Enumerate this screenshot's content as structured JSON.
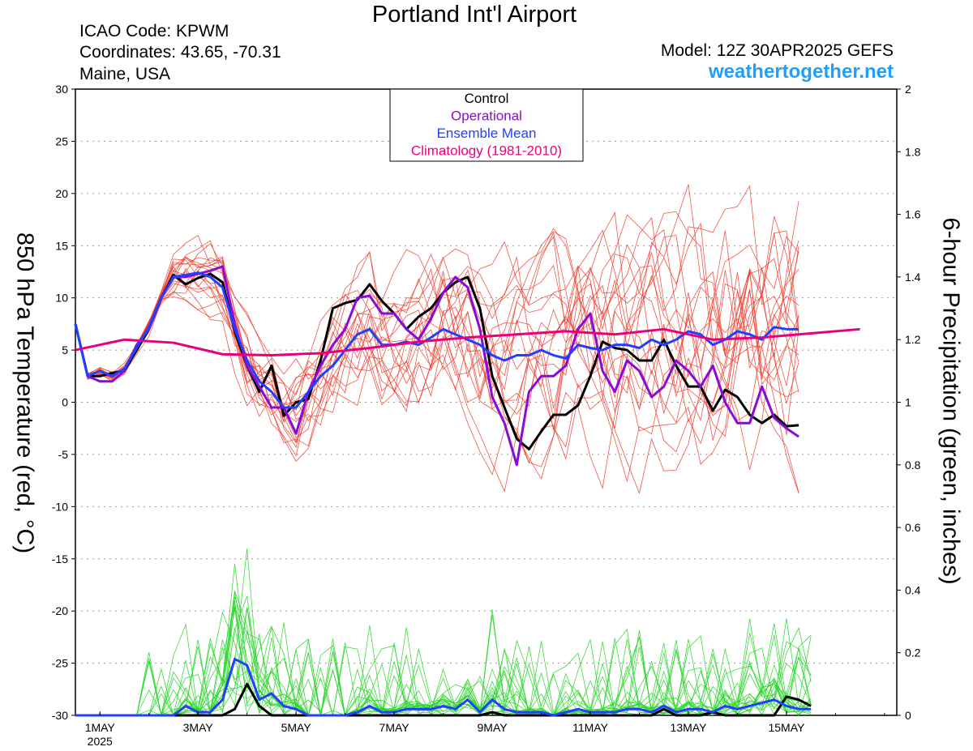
{
  "header": {
    "title": "Portland Int'l Airport",
    "icao": "ICAO Code: KPWM",
    "coords": "Coordinates: 43.65, -70.31",
    "region": "Maine, USA",
    "model": "Model: 12Z 30APR2025 GEFS",
    "brand": "weathertogether.net"
  },
  "chart_data": {
    "type": "line",
    "ylabel": "850 hPa Temperature (red, °C)",
    "y2label": "6-hour Precipitation (green, inches)",
    "ylim": [
      -30,
      30
    ],
    "y2lim": [
      0,
      2
    ],
    "yticks": [
      "30",
      "25",
      "20",
      "15",
      "10",
      "5",
      "0",
      "-5",
      "-10",
      "-15",
      "-20",
      "-25",
      "-30"
    ],
    "y2ticks": [
      "2",
      "1.8",
      "1.6",
      "1.4",
      "1.2",
      "1",
      "0.8",
      "0.6",
      "0.4",
      "0.2",
      "0"
    ],
    "xlim": [
      0,
      16.75
    ],
    "x_units": "days since 00Z 1MAY2025",
    "xticks": [
      {
        "x": 0.5,
        "label": "1MAY",
        "sub": "2025"
      },
      {
        "x": 2.5,
        "label": "3MAY"
      },
      {
        "x": 4.5,
        "label": "5MAY"
      },
      {
        "x": 6.5,
        "label": "7MAY"
      },
      {
        "x": 8.5,
        "label": "9MAY"
      },
      {
        "x": 10.5,
        "label": "11MAY"
      },
      {
        "x": 12.5,
        "label": "13MAY"
      },
      {
        "x": 14.5,
        "label": "15MAY"
      }
    ],
    "legend": {
      "placement": "top-center",
      "entries": [
        {
          "label": "Control",
          "color": "#000000"
        },
        {
          "label": "Operational",
          "color": "#8a0ad8"
        },
        {
          "label": "Ensemble Mean",
          "color": "#2040ff"
        },
        {
          "label": "Climatology (1981-2010)",
          "color": "#e8007a"
        }
      ]
    },
    "colors": {
      "control": "#000000",
      "operational": "#8a0ad8",
      "mean": "#2040ff",
      "climatology": "#e8007a",
      "members_temp": "#f03a2a",
      "members_precip": "#2ad62a"
    },
    "series": [
      {
        "name": "Control",
        "kind": "temperature",
        "x_start": 0,
        "x_step": 0.25,
        "values": [
          7.5,
          2.5,
          2.5,
          2.8,
          3.0,
          5.0,
          7.0,
          10.0,
          12.2,
          11.3,
          11.9,
          12.3,
          11.5,
          6.8,
          3.5,
          1.0,
          3.5,
          -1.3,
          0.0,
          0.3,
          4.0,
          9.0,
          9.5,
          9.8,
          11.3,
          9.7,
          8.5,
          7.0,
          8.2,
          9.0,
          10.5,
          11.5,
          12.0,
          9.0,
          2.5,
          -0.5,
          -3.5,
          -4.5,
          -2.8,
          -1.2,
          -1.2,
          -0.3,
          2.5,
          5.8,
          5.2,
          5.0,
          4.0,
          4.0,
          6.0,
          3.5,
          1.5,
          1.5,
          -0.8,
          1.2,
          0.5,
          -1.2,
          -2.0,
          -1.2,
          -2.3,
          -2.2
        ]
      },
      {
        "name": "Operational",
        "kind": "temperature",
        "x_start": 0,
        "x_step": 0.25,
        "values": [
          7.5,
          2.5,
          2.0,
          2.0,
          3.0,
          5.5,
          7.0,
          10.0,
          12.0,
          12.0,
          12.3,
          12.6,
          13.0,
          7.5,
          3.5,
          1.5,
          -0.5,
          -0.5,
          -3.0,
          1.0,
          3.5,
          5.5,
          7.0,
          10.0,
          10.2,
          8.5,
          8.5,
          7.0,
          6.0,
          8.0,
          10.5,
          12.0,
          11.0,
          7.0,
          0.5,
          -2.0,
          -6.0,
          1.0,
          2.5,
          2.5,
          3.5,
          7.0,
          8.5,
          3.0,
          1.0,
          4.0,
          3.0,
          0.5,
          1.5,
          4.0,
          3.0,
          1.5,
          3.5,
          0.0,
          -2.0,
          -2.0,
          1.5,
          -1.5,
          -2.5,
          -3.3
        ]
      },
      {
        "name": "Ensemble Mean",
        "kind": "temperature",
        "x_start": 0,
        "x_step": 0.25,
        "values": [
          7.5,
          2.5,
          3.0,
          2.5,
          3.2,
          5.2,
          7.2,
          10.0,
          12.0,
          12.2,
          12.4,
          12.0,
          11.0,
          7.0,
          4.0,
          2.0,
          1.0,
          -0.5,
          -0.5,
          1.0,
          2.5,
          3.5,
          5.0,
          6.5,
          7.0,
          5.5,
          5.5,
          5.8,
          5.5,
          6.2,
          7.0,
          6.5,
          6.0,
          5.5,
          4.5,
          4.0,
          4.5,
          4.5,
          5.0,
          4.5,
          4.2,
          5.5,
          5.2,
          5.0,
          5.5,
          5.5,
          5.2,
          6.0,
          5.5,
          6.0,
          6.8,
          6.5,
          5.5,
          6.0,
          6.8,
          6.5,
          6.0,
          7.2,
          7.0,
          7.0
        ]
      },
      {
        "name": "Climatology (1981-2010)",
        "kind": "temperature",
        "x_start": 0,
        "x_step": 1,
        "values": [
          5.0,
          6.0,
          5.7,
          4.6,
          4.5,
          4.7,
          5.2,
          5.8,
          6.2,
          6.5,
          6.8,
          6.5,
          7.0,
          6.0,
          6.2,
          6.6,
          7.0
        ]
      },
      {
        "name": "Control",
        "kind": "precipitation",
        "x_start": 0,
        "x_step": 0.25,
        "values": [
          0,
          0,
          0,
          0,
          0,
          0,
          0,
          0,
          0,
          0,
          0,
          0,
          0,
          0.02,
          0.1,
          0.03,
          0,
          0,
          0,
          0,
          0,
          0,
          0,
          0,
          0,
          0,
          0,
          0,
          0,
          0,
          0,
          0,
          0,
          0,
          0.01,
          0,
          0,
          0,
          0,
          0,
          0,
          0,
          0,
          0,
          0,
          0,
          0,
          0,
          0.02,
          0,
          0,
          0,
          0.01,
          0,
          0,
          0,
          0,
          0,
          0.06,
          0.05,
          0.03
        ]
      },
      {
        "name": "Ensemble Mean",
        "kind": "precipitation",
        "x_start": 0,
        "x_step": 0.25,
        "values": [
          0,
          0,
          0,
          0,
          0,
          0,
          0,
          0,
          0,
          0.03,
          0.01,
          0.01,
          0.05,
          0.18,
          0.16,
          0.05,
          0.07,
          0.03,
          0.02,
          0,
          0,
          0,
          0,
          0.01,
          0.03,
          0.01,
          0.01,
          0.02,
          0.02,
          0.02,
          0.03,
          0.02,
          0.05,
          0.01,
          0.05,
          0.02,
          0.01,
          0.01,
          0.01,
          0,
          0.01,
          0.02,
          0.01,
          0.01,
          0.01,
          0.02,
          0.02,
          0.01,
          0.03,
          0.01,
          0.02,
          0.02,
          0.01,
          0.03,
          0.02,
          0.03,
          0.04,
          0.05,
          0.03,
          0.02,
          0.02
        ]
      }
    ]
  }
}
